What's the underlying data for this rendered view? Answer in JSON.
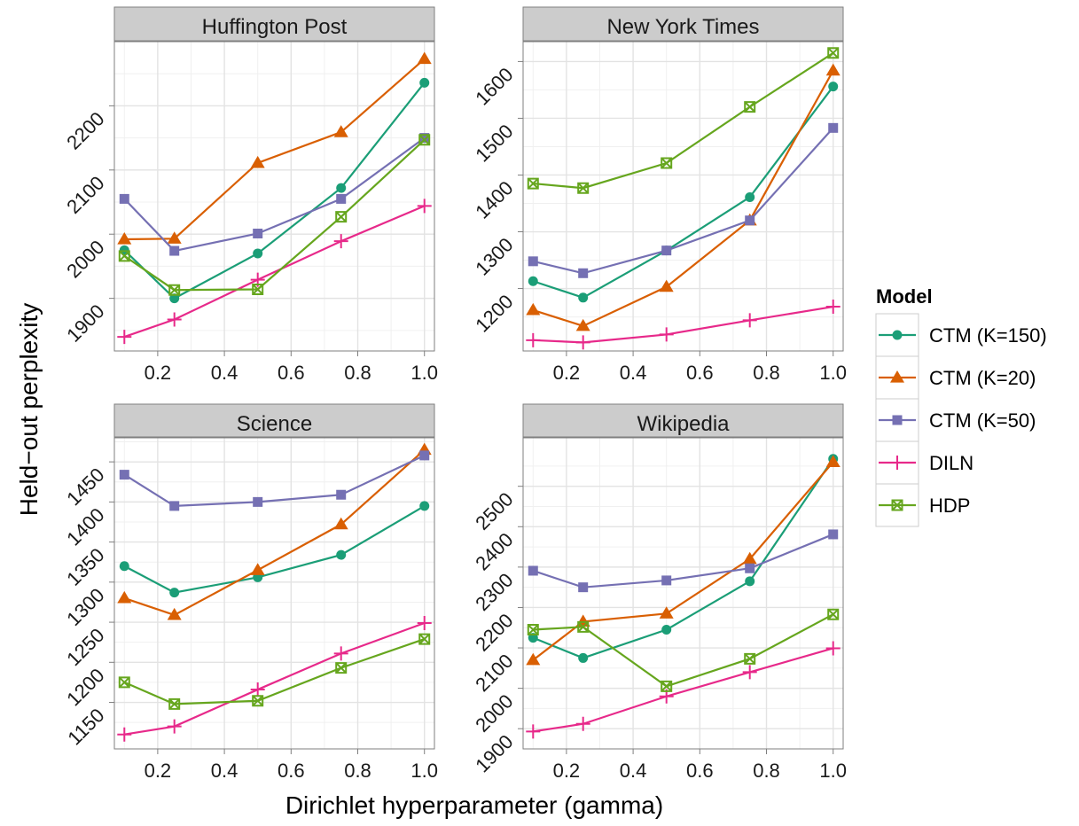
{
  "figure": {
    "xlabel": "Dirichlet hyperparameter (gamma)",
    "ylabel": "Held−out perplexity"
  },
  "legend": {
    "title": "Model",
    "position": "right"
  },
  "colors": {
    "CTM (K=150)": "#1b9e77",
    "CTM (K=20)": "#d95f02",
    "CTM (K=50)": "#7570b3",
    "DILN": "#e7298a",
    "HDP": "#66a61e"
  },
  "markers": {
    "CTM (K=150)": "circle",
    "CTM (K=20)": "triangle",
    "CTM (K=50)": "square",
    "DILN": "plus",
    "HDP": "boxed-x"
  },
  "chart_data": [
    {
      "type": "line",
      "title": "Huffington Post",
      "x": [
        0.1,
        0.25,
        0.5,
        0.75,
        1.0
      ],
      "xticks": [
        0.2,
        0.4,
        0.6,
        0.8,
        1.0
      ],
      "xlim": [
        0.07,
        1.03
      ],
      "yticks": [
        1900,
        2000,
        2100,
        2200
      ],
      "ylim": [
        1818,
        2300
      ],
      "grid": true,
      "series": [
        {
          "name": "CTM (K=150)",
          "values": [
            1975,
            1900,
            1970,
            2072,
            2236
          ]
        },
        {
          "name": "CTM (K=20)",
          "values": [
            1992,
            1993,
            2111,
            2159,
            2273
          ]
        },
        {
          "name": "CTM (K=50)",
          "values": [
            2055,
            1974,
            2001,
            2055,
            2150
          ]
        },
        {
          "name": "DILN",
          "values": [
            1840,
            1867,
            1929,
            1989,
            2044
          ]
        },
        {
          "name": "HDP",
          "values": [
            1966,
            1913,
            1914,
            2027,
            2147
          ]
        }
      ]
    },
    {
      "type": "line",
      "title": "New York Times",
      "x": [
        0.1,
        0.25,
        0.5,
        0.75,
        1.0
      ],
      "xticks": [
        0.2,
        0.4,
        0.6,
        0.8,
        1.0
      ],
      "xlim": [
        0.07,
        1.03
      ],
      "yticks": [
        1200,
        1300,
        1400,
        1500,
        1600
      ],
      "ylim": [
        1090,
        1635
      ],
      "grid": true,
      "series": [
        {
          "name": "CTM (K=150)",
          "values": [
            1213,
            1184,
            1267,
            1361,
            1556
          ]
        },
        {
          "name": "CTM (K=20)",
          "values": [
            1162,
            1134,
            1203,
            1320,
            1584
          ]
        },
        {
          "name": "CTM (K=50)",
          "values": [
            1248,
            1227,
            1267,
            1320,
            1483
          ]
        },
        {
          "name": "DILN",
          "values": [
            1109,
            1105,
            1119,
            1144,
            1168
          ]
        },
        {
          "name": "HDP",
          "values": [
            1385,
            1377,
            1421,
            1520,
            1615
          ]
        }
      ]
    },
    {
      "type": "line",
      "title": "Science",
      "x": [
        0.1,
        0.25,
        0.5,
        0.75,
        1.0
      ],
      "xticks": [
        0.2,
        0.4,
        0.6,
        0.8,
        1.0
      ],
      "xlim": [
        0.07,
        1.03
      ],
      "yticks": [
        1150,
        1200,
        1250,
        1300,
        1350,
        1400,
        1450
      ],
      "ylim": [
        1092,
        1480
      ],
      "grid": true,
      "series": [
        {
          "name": "CTM (K=150)",
          "values": [
            1320,
            1287,
            1306,
            1334,
            1395
          ]
        },
        {
          "name": "CTM (K=20)",
          "values": [
            1280,
            1259,
            1315,
            1372,
            1465
          ]
        },
        {
          "name": "CTM (K=50)",
          "values": [
            1434,
            1395,
            1400,
            1409,
            1458
          ]
        },
        {
          "name": "DILN",
          "values": [
            1110,
            1120,
            1166,
            1211,
            1249
          ]
        },
        {
          "name": "HDP",
          "values": [
            1175,
            1148,
            1152,
            1193,
            1229
          ]
        }
      ]
    },
    {
      "type": "line",
      "title": "Wikipedia",
      "x": [
        0.1,
        0.25,
        0.5,
        0.75,
        1.0
      ],
      "xticks": [
        0.2,
        0.4,
        0.6,
        0.8,
        1.0
      ],
      "xlim": [
        0.07,
        1.03
      ],
      "yticks": [
        1900,
        2000,
        2100,
        2200,
        2300,
        2400,
        2500
      ],
      "ylim": [
        1850,
        2620
      ],
      "grid": true,
      "series": [
        {
          "name": "CTM (K=150)",
          "values": [
            2125,
            2075,
            2145,
            2265,
            2568
          ]
        },
        {
          "name": "CTM (K=20)",
          "values": [
            2070,
            2165,
            2185,
            2320,
            2560
          ]
        },
        {
          "name": "CTM (K=50)",
          "values": [
            2291,
            2250,
            2267,
            2297,
            2381
          ]
        },
        {
          "name": "DILN",
          "values": [
            1893,
            1912,
            1980,
            2040,
            2099
          ]
        },
        {
          "name": "HDP",
          "values": [
            2145,
            2152,
            2005,
            2073,
            2183
          ]
        }
      ]
    }
  ]
}
